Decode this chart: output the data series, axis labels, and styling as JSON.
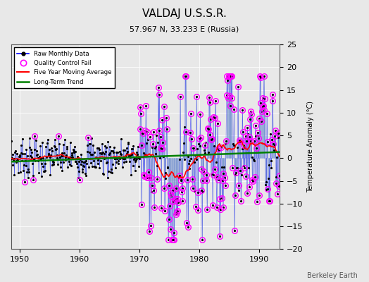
{
  "title": "VALDAJ U.S.S.R.",
  "subtitle": "57.967 N, 33.233 E (Russia)",
  "ylabel": "Temperature Anomaly (°C)",
  "credit": "Berkeley Earth",
  "xlim": [
    1948.5,
    1993.5
  ],
  "ylim": [
    -20,
    25
  ],
  "yticks": [
    -20,
    -15,
    -10,
    -5,
    0,
    5,
    10,
    15,
    20,
    25
  ],
  "xticks": [
    1950,
    1960,
    1970,
    1980,
    1990
  ],
  "bg_color": "#e8e8e8",
  "plot_bg": "#e8e8e8",
  "seed": 7
}
